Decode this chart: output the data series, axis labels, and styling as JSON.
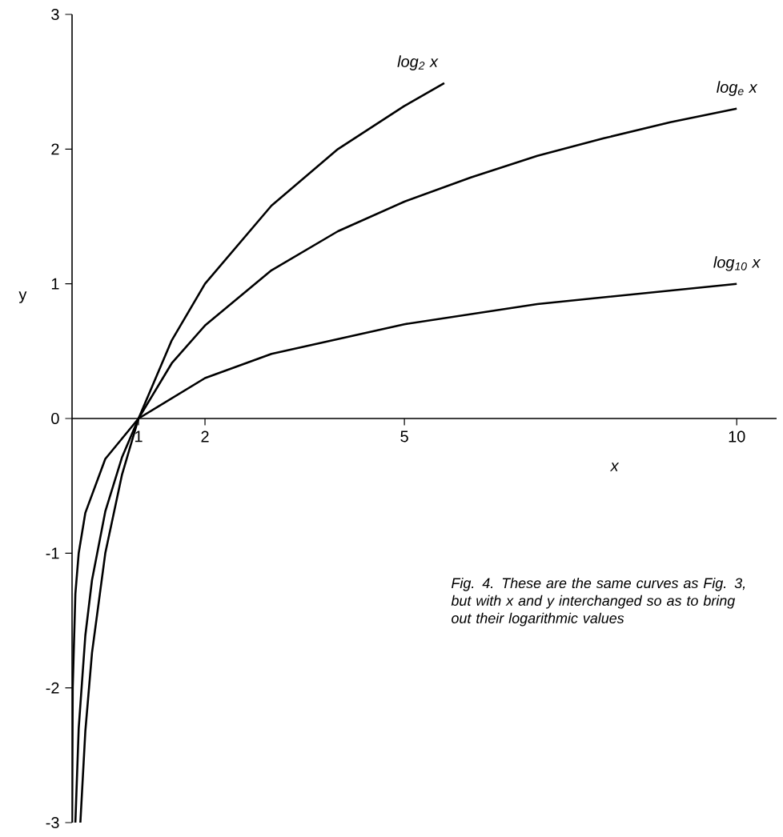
{
  "chart_data": {
    "type": "line",
    "xlabel": "x",
    "ylabel": "y",
    "xlim": [
      0,
      10.6
    ],
    "ylim": [
      -3,
      3
    ],
    "xticks": [
      1,
      2,
      5,
      10
    ],
    "yticks": [
      -3,
      -2,
      -1,
      0,
      1,
      2,
      3
    ],
    "legend": false,
    "grid": false,
    "marker": "none",
    "line_style": "solid",
    "annotations": [
      "Fig. 4. These are the same curves as Fig. 3, but with x and y interchanged so as to bring out their logarithmic values"
    ],
    "series": [
      {
        "name": "log$_{2}$ x",
        "color": "#000000",
        "x": [
          0.125,
          0.2,
          0.3,
          0.5,
          0.75,
          1,
          1.5,
          2,
          3,
          4,
          5,
          5.6
        ],
        "values": [
          -3,
          -2.32,
          -1.74,
          -1,
          -0.42,
          0,
          0.58,
          1,
          1.58,
          2,
          2.32,
          2.49
        ]
      },
      {
        "name": "log$_{e}$ x",
        "color": "#000000",
        "x": [
          0.05,
          0.1,
          0.2,
          0.3,
          0.5,
          0.75,
          1,
          1.5,
          2,
          3,
          4,
          5,
          6,
          7,
          8,
          9,
          10
        ],
        "values": [
          -3,
          -2.3,
          -1.61,
          -1.2,
          -0.69,
          -0.29,
          0,
          0.41,
          0.69,
          1.1,
          1.39,
          1.61,
          1.79,
          1.95,
          2.08,
          2.2,
          2.3
        ]
      },
      {
        "name": "log$_{10}$ x",
        "color": "#000000",
        "x": [
          0.001,
          0.01,
          0.05,
          0.1,
          0.2,
          0.5,
          1,
          2,
          3,
          5,
          7,
          10
        ],
        "values": [
          -3,
          -2,
          -1.3,
          -1,
          -0.7,
          -0.3,
          0,
          0.3,
          0.48,
          0.7,
          0.85,
          1
        ]
      }
    ]
  }
}
